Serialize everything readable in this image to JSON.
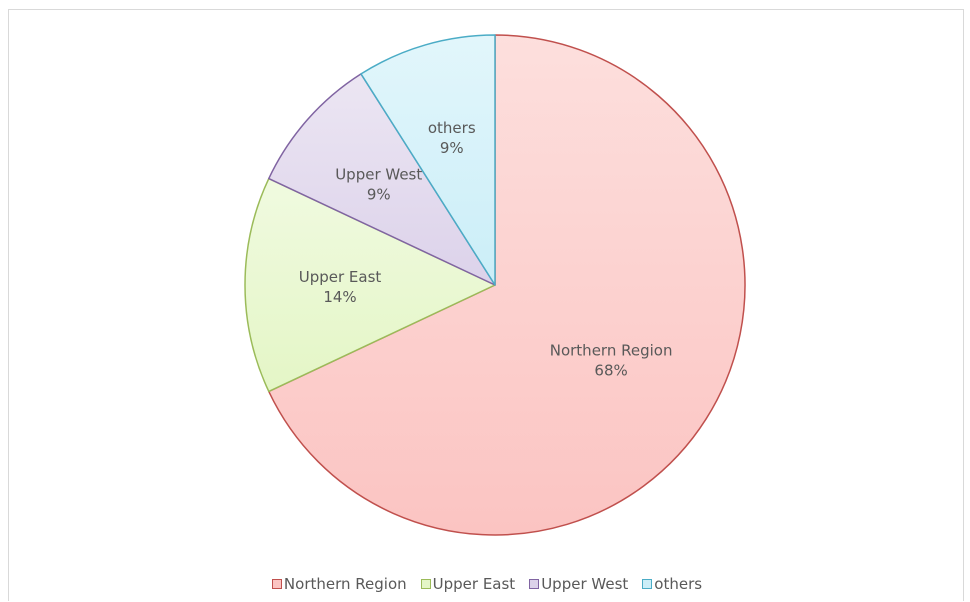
{
  "chart_data": {
    "type": "pie",
    "title": "",
    "categories": [
      "Northern Region",
      "Upper East",
      "Upper West",
      "others"
    ],
    "values": [
      68,
      14,
      9,
      9
    ],
    "value_labels": [
      "68%",
      "14%",
      "9%",
      "9%"
    ],
    "start_angle_deg": 0,
    "direction": "clockwise",
    "legend_position": "bottom",
    "colors": {
      "fills": [
        "#fbc4c2",
        "#e4f6c6",
        "#dcd2ea",
        "#cbeef8"
      ],
      "strokes": [
        "#c0504d",
        "#9bbb59",
        "#8064a2",
        "#4bacc6"
      ]
    }
  }
}
